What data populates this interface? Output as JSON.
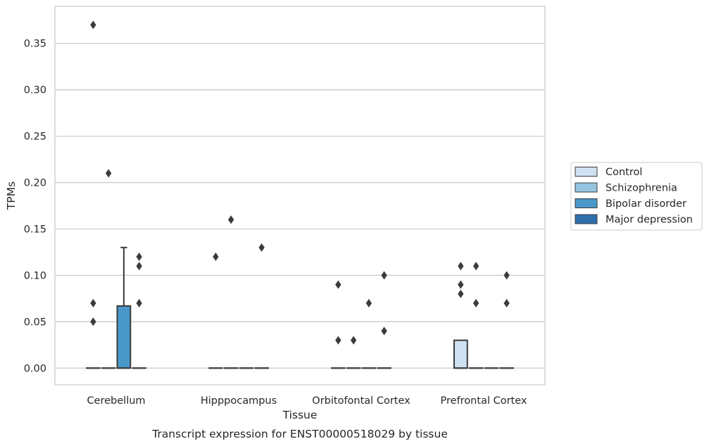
{
  "chart_data": {
    "type": "box",
    "xlabel": "Tissue",
    "ylabel": "TPMs",
    "caption": "Transcript expression for ENST00000518029 by tissue",
    "ylim": [
      -0.018,
      0.39
    ],
    "yticks": [
      0.0,
      0.05,
      0.1,
      0.15,
      0.2,
      0.25,
      0.3,
      0.35
    ],
    "ytick_labels": [
      "0.00",
      "0.05",
      "0.10",
      "0.15",
      "0.20",
      "0.25",
      "0.30",
      "0.35"
    ],
    "grid": "horizontal",
    "legend_position": "right",
    "categories": [
      "Cerebellum",
      "Hipppocampus",
      "Orbitofontal Cortex",
      "Prefrontal Cortex"
    ],
    "series": [
      {
        "name": "Control",
        "color": "#d0e1f2",
        "boxes": [
          {
            "q1": 0,
            "median": 0,
            "q3": 0,
            "whisker_low": 0,
            "whisker_high": 0,
            "outliers": [
              0.07,
              0.05,
              0.37
            ]
          },
          {
            "q1": 0,
            "median": 0,
            "q3": 0,
            "whisker_low": 0,
            "whisker_high": 0,
            "outliers": [
              0.12
            ]
          },
          {
            "q1": 0,
            "median": 0,
            "q3": 0,
            "whisker_low": 0,
            "whisker_high": 0,
            "outliers": [
              0.09,
              0.03
            ]
          },
          {
            "q1": 0,
            "median": 0,
            "q3": 0.03,
            "whisker_low": 0,
            "whisker_high": 0.03,
            "outliers": [
              0.11,
              0.09,
              0.08
            ]
          }
        ]
      },
      {
        "name": "Schizophrenia",
        "color": "#94c4df",
        "boxes": [
          {
            "q1": 0,
            "median": 0,
            "q3": 0,
            "whisker_low": 0,
            "whisker_high": 0,
            "outliers": [
              0.21
            ]
          },
          {
            "q1": 0,
            "median": 0,
            "q3": 0,
            "whisker_low": 0,
            "whisker_high": 0,
            "outliers": [
              0.16
            ]
          },
          {
            "q1": 0,
            "median": 0,
            "q3": 0,
            "whisker_low": 0,
            "whisker_high": 0,
            "outliers": [
              0.03
            ]
          },
          {
            "q1": 0,
            "median": 0,
            "q3": 0,
            "whisker_low": 0,
            "whisker_high": 0,
            "outliers": [
              0.11,
              0.07
            ]
          }
        ]
      },
      {
        "name": "Bipolar disorder",
        "color": "#4a98c9",
        "boxes": [
          {
            "q1": 0,
            "median": 0,
            "q3": 0.067,
            "whisker_low": 0,
            "whisker_high": 0.13,
            "outliers": []
          },
          {
            "q1": 0,
            "median": 0,
            "q3": 0,
            "whisker_low": 0,
            "whisker_high": 0,
            "outliers": []
          },
          {
            "q1": 0,
            "median": 0,
            "q3": 0,
            "whisker_low": 0,
            "whisker_high": 0,
            "outliers": [
              0.07
            ]
          },
          {
            "q1": 0,
            "median": 0,
            "q3": 0,
            "whisker_low": 0,
            "whisker_high": 0,
            "outliers": []
          }
        ]
      },
      {
        "name": "Major depression",
        "color": "#2e6fac",
        "boxes": [
          {
            "q1": 0,
            "median": 0,
            "q3": 0,
            "whisker_low": 0,
            "whisker_high": 0,
            "outliers": [
              0.12,
              0.11,
              0.07
            ]
          },
          {
            "q1": 0,
            "median": 0,
            "q3": 0,
            "whisker_low": 0,
            "whisker_high": 0,
            "outliers": [
              0.13
            ]
          },
          {
            "q1": 0,
            "median": 0,
            "q3": 0,
            "whisker_low": 0,
            "whisker_high": 0,
            "outliers": [
              0.1,
              0.04
            ]
          },
          {
            "q1": 0,
            "median": 0,
            "q3": 0,
            "whisker_low": 0,
            "whisker_high": 0,
            "outliers": [
              0.1,
              0.07
            ]
          }
        ]
      }
    ]
  },
  "colors": {
    "edge": "#3b3b3b",
    "grid": "#cccccc",
    "frame": "#cccccc",
    "text": "#262626"
  }
}
